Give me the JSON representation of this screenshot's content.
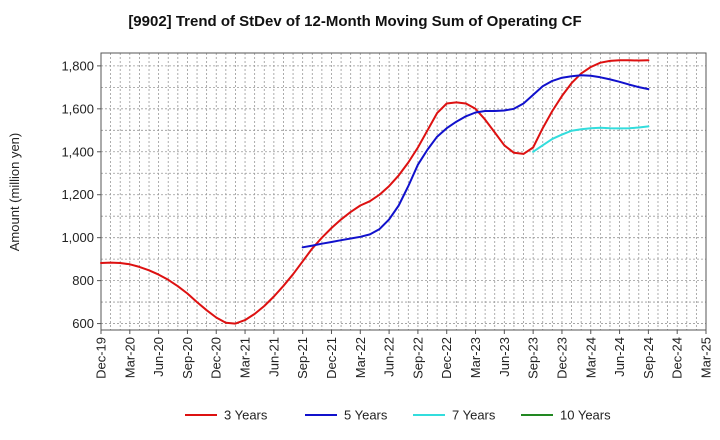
{
  "chart_data": {
    "type": "line",
    "title": "[9902]  Trend of StDev of 12-Month Moving Sum of Operating CF",
    "xlabel": "",
    "ylabel": "Amount (million yen)",
    "ylim": [
      570,
      1860
    ],
    "yticks": [
      600,
      800,
      1000,
      1200,
      1400,
      1600,
      1800
    ],
    "ytick_labels": [
      "600",
      "800",
      "1,000",
      "1,200",
      "1,400",
      "1,600",
      "1,800"
    ],
    "x_range": [
      0,
      63
    ],
    "xticks": [
      0,
      3,
      6,
      9,
      12,
      15,
      18,
      21,
      24,
      27,
      30,
      33,
      36,
      39,
      42,
      45,
      48,
      51,
      54,
      57,
      60,
      63
    ],
    "xtick_labels": [
      "Dec-19",
      "Mar-20",
      "Jun-20",
      "Sep-20",
      "Dec-20",
      "Mar-21",
      "Jun-21",
      "Sep-21",
      "Dec-21",
      "Mar-22",
      "Jun-22",
      "Sep-22",
      "Dec-22",
      "Mar-23",
      "Jun-23",
      "Sep-23",
      "Dec-23",
      "Mar-24",
      "Jun-24",
      "Sep-24",
      "Dec-24",
      "Mar-25"
    ],
    "grid": true,
    "legend_position": "bottom",
    "series": [
      {
        "name": "3 Years",
        "color": "#dd1111",
        "x": [
          0,
          1,
          2,
          3,
          4,
          5,
          6,
          7,
          8,
          9,
          10,
          11,
          12,
          13,
          14,
          15,
          16,
          17,
          18,
          19,
          20,
          21,
          22,
          23,
          24,
          25,
          26,
          27,
          28,
          29,
          30,
          31,
          32,
          33,
          34,
          35,
          36,
          37,
          38,
          39,
          40,
          41,
          42,
          43,
          44,
          45,
          46,
          47,
          48,
          49,
          50,
          51,
          52,
          53,
          54,
          55,
          56,
          57
        ],
        "values": [
          882,
          884,
          882,
          876,
          864,
          848,
          828,
          804,
          774,
          740,
          700,
          662,
          628,
          604,
          600,
          616,
          645,
          682,
          726,
          776,
          830,
          890,
          950,
          1000,
          1045,
          1085,
          1120,
          1150,
          1170,
          1200,
          1240,
          1290,
          1350,
          1420,
          1500,
          1580,
          1625,
          1630,
          1625,
          1600,
          1550,
          1490,
          1430,
          1395,
          1390,
          1420,
          1510,
          1590,
          1660,
          1720,
          1765,
          1795,
          1815,
          1823,
          1826,
          1826,
          1825,
          1826
        ]
      },
      {
        "name": "5 Years",
        "color": "#1111cc",
        "x": [
          21,
          22,
          23,
          24,
          25,
          26,
          27,
          28,
          29,
          30,
          31,
          32,
          33,
          34,
          35,
          36,
          37,
          38,
          39,
          40,
          41,
          42,
          43,
          44,
          45,
          46,
          47,
          48,
          49,
          50,
          51,
          52,
          53,
          54,
          55,
          56,
          57
        ],
        "values": [
          955,
          963,
          972,
          980,
          988,
          996,
          1004,
          1015,
          1040,
          1085,
          1150,
          1240,
          1340,
          1410,
          1470,
          1510,
          1540,
          1565,
          1583,
          1590,
          1590,
          1592,
          1600,
          1625,
          1665,
          1705,
          1730,
          1745,
          1752,
          1756,
          1754,
          1747,
          1737,
          1726,
          1713,
          1701,
          1692
        ]
      },
      {
        "name": "7 Years",
        "color": "#33dddd",
        "x": [
          45,
          46,
          47,
          48,
          49,
          50,
          51,
          52,
          53,
          54,
          55,
          56,
          57
        ],
        "values": [
          1400,
          1430,
          1460,
          1480,
          1498,
          1505,
          1510,
          1512,
          1510,
          1509,
          1510,
          1513,
          1518
        ]
      },
      {
        "name": "10 Years",
        "color": "#228822",
        "x": [],
        "values": []
      }
    ]
  }
}
